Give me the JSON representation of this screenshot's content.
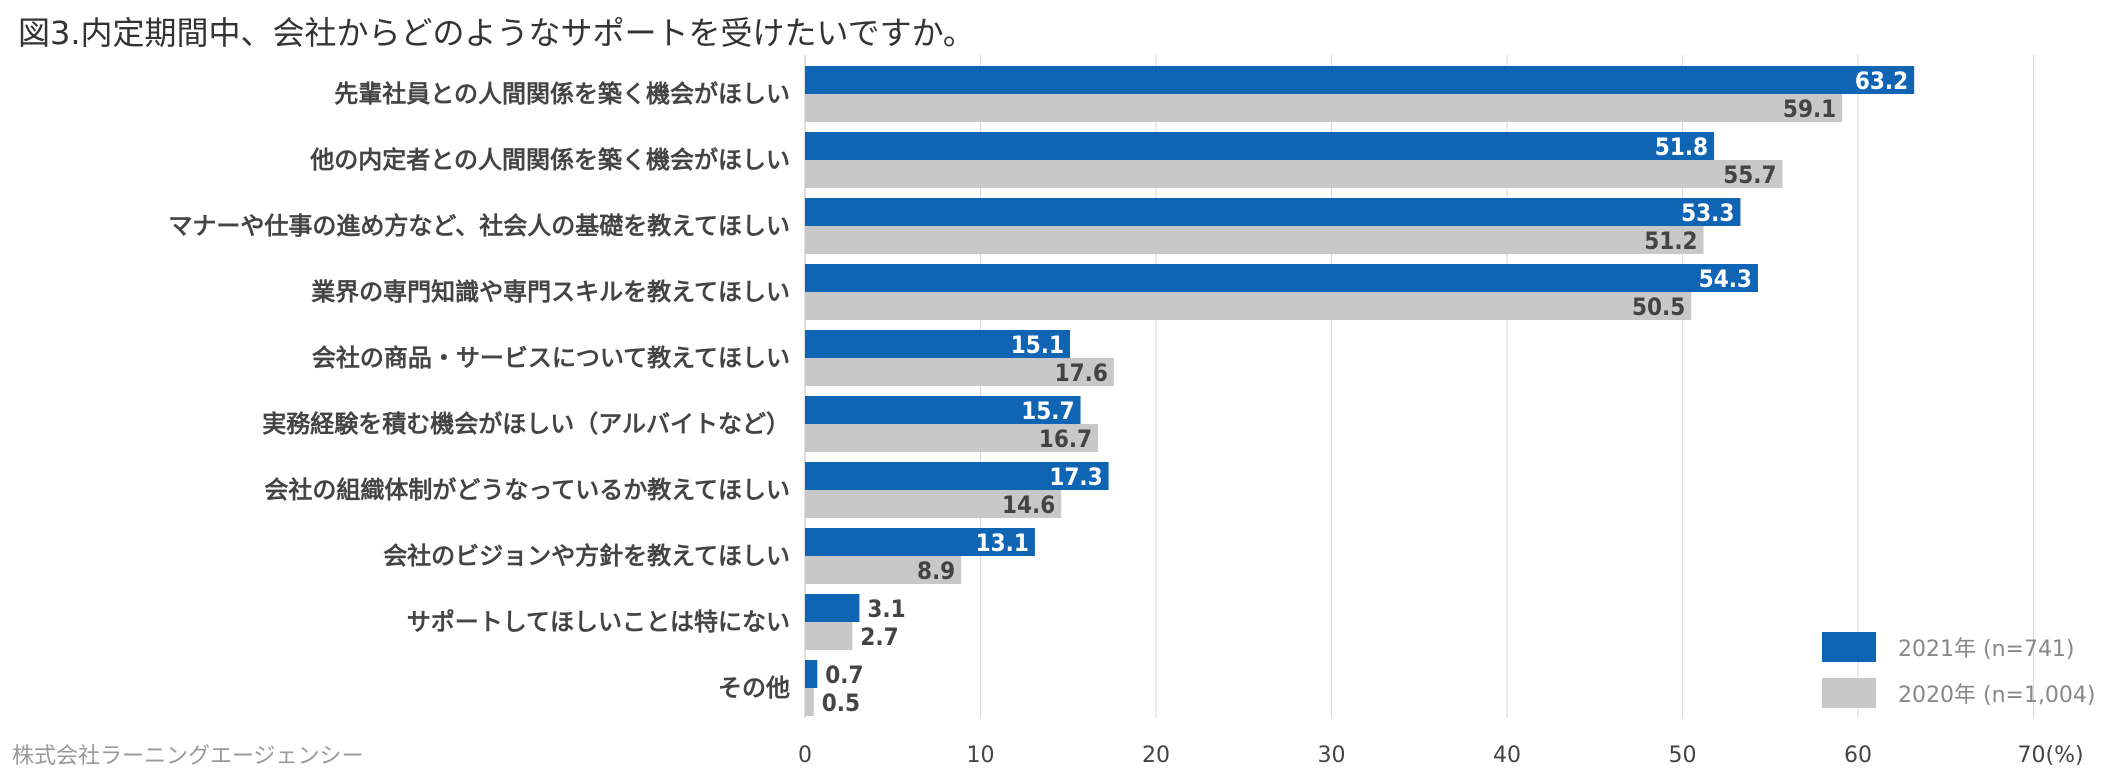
{
  "title": "図3.内定期間中、会社からどのようなサポートを受けたいですか。",
  "footer": "株式会社ラーニングエージェンシー",
  "colors": {
    "series_2021": "#0f64b4",
    "series_2020": "#c8c8c8",
    "grid": "#d9d9d9"
  },
  "chart_data": {
    "type": "bar",
    "orientation": "horizontal",
    "categories": [
      "先輩社員との人間関係を築く機会がほしい",
      "他の内定者との人間関係を築く機会がほしい",
      "マナーや仕事の進め方など、社会人の基礎を教えてほしい",
      "業界の専門知識や専門スキルを教えてほしい",
      "会社の商品・サービスについて教えてほしい",
      "実務経験を積む機会がほしい（アルバイトなど）",
      "会社の組織体制がどうなっているか教えてほしい",
      "会社のビジョンや方針を教えてほしい",
      "サポートしてほしいことは特にない",
      "その他"
    ],
    "series": [
      {
        "name": "2021年 (n=741)",
        "values": [
          63.2,
          51.8,
          53.3,
          54.3,
          15.1,
          15.7,
          17.3,
          13.1,
          3.1,
          0.7
        ]
      },
      {
        "name": "2020年 (n=1,004)",
        "values": [
          59.1,
          55.7,
          51.2,
          50.5,
          17.6,
          16.7,
          14.6,
          8.9,
          2.7,
          0.5
        ]
      }
    ],
    "xlim": [
      0,
      70
    ],
    "x_ticks": [
      "0",
      "10",
      "20",
      "30",
      "40",
      "50",
      "60",
      "70(%)"
    ],
    "grid": true,
    "legend_position": "bottom-right"
  }
}
